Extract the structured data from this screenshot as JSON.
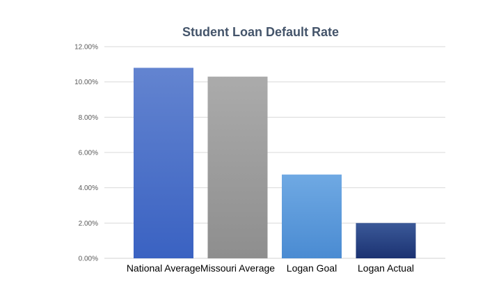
{
  "chart_data": {
    "type": "bar",
    "title": "Student Loan Default Rate",
    "categories": [
      "National Average",
      "Missouri Average",
      "Logan Goal",
      "Logan Actual"
    ],
    "values": [
      10.8,
      10.3,
      4.75,
      2.0
    ],
    "value_format": "percent",
    "ylim": [
      0,
      12
    ],
    "yticks": [
      "0.00%",
      "2.00%",
      "4.00%",
      "6.00%",
      "8.00%",
      "10.00%",
      "12.00%"
    ],
    "grid": true,
    "legend": "none",
    "bar_colors": [
      [
        "#6384d0",
        "#3a62c2"
      ],
      [
        "#ababab",
        "#8e8e8e"
      ],
      [
        "#6fa9e3",
        "#4a8bd2"
      ],
      [
        "#3b5998",
        "#1b3272"
      ]
    ],
    "gridline_color": "#d9d9d9"
  }
}
